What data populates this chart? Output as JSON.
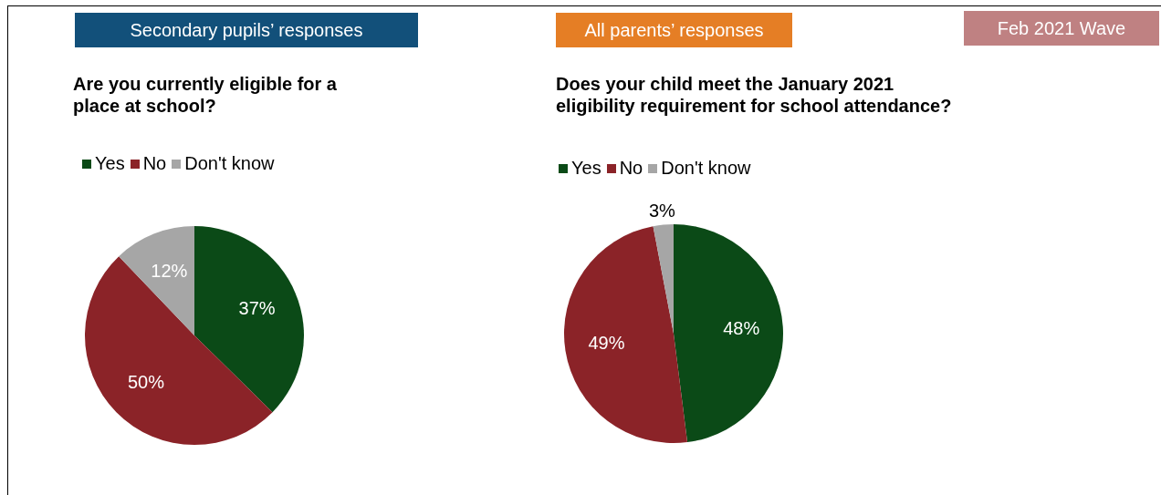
{
  "chart_data": [
    {
      "type": "pie",
      "subtitle": "Secondary pupils’ responses",
      "title": "Are you currently eligible for a\nplace at school?",
      "categories": [
        "Yes",
        "No",
        "Don't know"
      ],
      "values": [
        37,
        50,
        12
      ],
      "value_labels": [
        "37%",
        "50%",
        "12%"
      ],
      "colors": [
        "#0b4a17",
        "#8b2328",
        "#a6a6a6"
      ],
      "legend": "top left"
    },
    {
      "type": "pie",
      "subtitle": "All parents’ responses",
      "title": "Does your child meet the January 2021\neligibility requirement for school attendance?",
      "categories": [
        "Yes",
        "No",
        "Don't know"
      ],
      "values": [
        48,
        49,
        3
      ],
      "value_labels": [
        "48%",
        "49%",
        "3%"
      ],
      "colors": [
        "#0b4a17",
        "#8b2328",
        "#a6a6a6"
      ],
      "legend": "top left",
      "annotations": [
        "Feb 2021 Wave"
      ]
    }
  ]
}
